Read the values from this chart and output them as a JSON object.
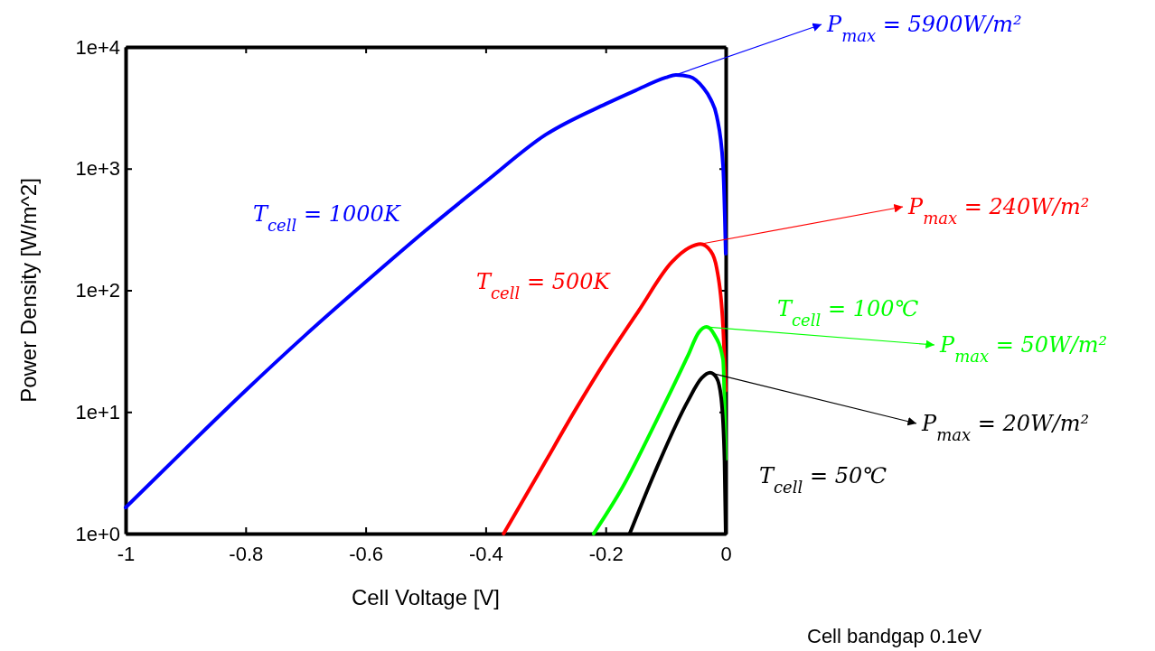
{
  "chart_data": {
    "type": "line",
    "xlabel": "Cell Voltage [V]",
    "ylabel": "Power Density [W/m^2]",
    "log": "y",
    "grid": false,
    "marker": "none",
    "line_style": "solid",
    "xlim": [
      -1,
      0
    ],
    "xticks": [
      -1,
      -0.8,
      -0.6,
      -0.4,
      -0.2,
      0
    ],
    "ylim": [
      1,
      10000
    ],
    "yticks": [
      {
        "value": 1,
        "label": "1e+0"
      },
      {
        "value": 10,
        "label": "1e+1"
      },
      {
        "value": 100,
        "label": "1e+2"
      },
      {
        "value": 1000,
        "label": "1e+3"
      },
      {
        "value": 10000,
        "label": "1e+4"
      }
    ],
    "series": [
      {
        "name": "T$_{cell}$ = 1000K",
        "color": "#0000ff",
        "x": [
          -1,
          -0.9,
          -0.8,
          -0.7,
          -0.6,
          -0.5,
          -0.4,
          -0.3,
          -0.2,
          -0.15,
          -0.1,
          -0.083,
          -0.06,
          -0.038,
          -0.025,
          -0.015,
          -0.0045,
          -0.0015,
          0
        ],
        "values": [
          1.64,
          5,
          15,
          43,
          117,
          310,
          780,
          1900,
          3400,
          4400,
          5600,
          5900,
          5700,
          4650,
          3700,
          2700,
          1070,
          400,
          200
        ]
      },
      {
        "name": "T$_{cell}$ = 500K",
        "color": "#ff0000",
        "x": [
          -0.37,
          -0.306,
          -0.25,
          -0.199,
          -0.145,
          -0.09,
          -0.06,
          -0.042,
          -0.025,
          -0.015,
          -0.0045,
          0
        ],
        "values": [
          1,
          3.5,
          10.5,
          27,
          68,
          170,
          225,
          240,
          210,
          152,
          51,
          15
        ]
      },
      {
        "name": "T$_{cell}$ = 100℃",
        "color": "#00ff00",
        "x": [
          -0.22,
          -0.172,
          -0.118,
          -0.063,
          -0.045,
          -0.032,
          -0.02,
          -0.0045,
          0
        ],
        "values": [
          1,
          2.4,
          8,
          29,
          45,
          50,
          44,
          27,
          4.1
        ]
      },
      {
        "name": "T$_{cell}$ = 50℃",
        "color": "#000000",
        "x": [
          -0.16,
          -0.118,
          -0.063,
          -0.04,
          -0.026,
          -0.015,
          -0.0075,
          -0.002,
          0
        ],
        "values": [
          1,
          3.2,
          12.3,
          19,
          21,
          19,
          13,
          4,
          1
        ]
      }
    ],
    "annotations": [
      {
        "text": "P$_{max}$ = 5900W/m²",
        "x": -0.083,
        "y": 5900
      },
      {
        "text": "P$_{max}$ = 240W/m²",
        "x": -0.042,
        "y": 240
      },
      {
        "text": "P$_{max}$ = 50W/m²",
        "x": -0.032,
        "y": 50
      },
      {
        "text": "P$_{max}$ = 20W/m²",
        "x": -0.026,
        "y": 21
      },
      "Cell bandgap 0.1eV"
    ]
  }
}
